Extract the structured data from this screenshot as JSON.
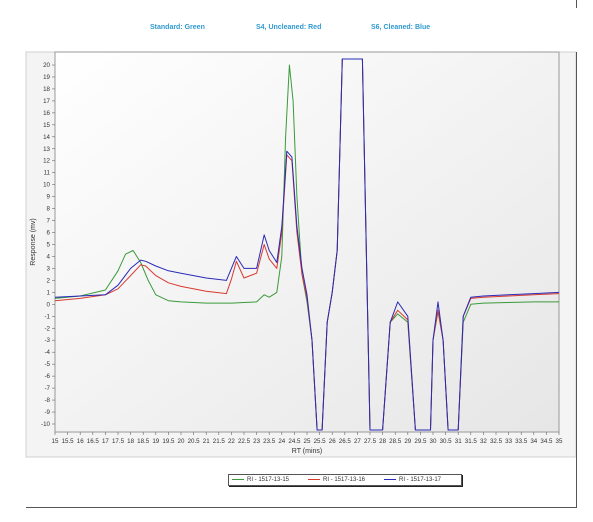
{
  "captions": {
    "standard": "Standard: Green",
    "s4": "S4, Uncleaned: Red",
    "s6": "S6, Cleaned: Blue"
  },
  "chart_data": {
    "type": "line",
    "xlabel": "RT (mins)",
    "ylabel": "Response (mv)",
    "xlim": [
      15,
      35
    ],
    "ylim": [
      -10.5,
      20.5
    ],
    "xticks": [
      15,
      15.5,
      16,
      16.5,
      17,
      17.5,
      18,
      18.5,
      19,
      19.5,
      20,
      20.5,
      21,
      21.5,
      22,
      22.5,
      23,
      23.5,
      24,
      24.5,
      25,
      25.5,
      26,
      26.5,
      27,
      27.5,
      28,
      28.5,
      29,
      29.5,
      30,
      30.5,
      31,
      31.5,
      32,
      32.5,
      33,
      33.5,
      34,
      34.5,
      35
    ],
    "yticks": [
      20,
      19,
      18,
      17,
      16,
      15,
      14,
      13,
      12,
      11,
      10,
      9,
      8,
      7,
      6,
      5,
      4,
      3,
      2,
      1,
      0,
      -1,
      -2,
      -3,
      -4,
      -5,
      -6,
      -7,
      -8,
      -9,
      -10
    ],
    "grid": false,
    "legend_position": "bottom",
    "series": [
      {
        "name": "RI - 1517-13-15",
        "color": "#3a9a3a",
        "x": [
          15,
          16,
          17,
          17.5,
          17.8,
          18.1,
          18.4,
          18.7,
          19,
          19.5,
          20,
          21,
          22,
          22.5,
          23,
          23.3,
          23.5,
          23.8,
          24,
          24.15,
          24.3,
          24.45,
          24.6,
          24.8,
          25,
          25.2,
          25.4,
          25.6,
          25.8,
          26,
          26.2,
          26.4,
          26.6,
          26.8,
          27,
          27.2,
          27.5,
          28,
          28.3,
          28.6,
          29,
          29.3,
          29.6,
          29.9,
          30,
          30.2,
          30.4,
          30.6,
          30.8,
          31,
          31.2,
          31.5,
          32,
          33,
          34,
          35
        ],
        "y": [
          0.5,
          0.7,
          1.2,
          2.8,
          4.2,
          4.5,
          3.5,
          2.0,
          0.8,
          0.3,
          0.2,
          0.1,
          0.1,
          0.15,
          0.2,
          0.8,
          0.6,
          1.0,
          4.0,
          14.0,
          20.0,
          17.0,
          9.0,
          2.5,
          0.2,
          -3.0,
          -10.5,
          -10.5,
          -1.5,
          1.0,
          4.5,
          20.5,
          20.5,
          20.5,
          20.5,
          20.5,
          -10.5,
          -10.5,
          -1.5,
          -0.8,
          -1.5,
          -10.5,
          -10.5,
          -10.5,
          -3.0,
          -0.6,
          -3.0,
          -10.5,
          -10.5,
          -10.5,
          -1.5,
          0.0,
          0.1,
          0.15,
          0.2,
          0.2
        ]
      },
      {
        "name": "RI - 1517-13-16",
        "color": "#d83a2e",
        "x": [
          15,
          16,
          17,
          17.5,
          18,
          18.4,
          18.6,
          19,
          19.5,
          20,
          21,
          21.8,
          22,
          22.2,
          22.5,
          23,
          23.3,
          23.5,
          23.8,
          24,
          24.2,
          24.4,
          24.6,
          24.8,
          25,
          25.2,
          25.4,
          25.6,
          25.8,
          26,
          26.2,
          26.4,
          26.6,
          26.8,
          27,
          27.2,
          27.5,
          28,
          28.3,
          28.6,
          29,
          29.3,
          29.6,
          29.9,
          30,
          30.2,
          30.4,
          30.6,
          30.8,
          31,
          31.2,
          31.5,
          32,
          33,
          34,
          35
        ],
        "y": [
          0.3,
          0.5,
          0.8,
          1.3,
          2.4,
          3.3,
          3.2,
          2.4,
          1.8,
          1.5,
          1.1,
          0.9,
          2.1,
          3.6,
          2.2,
          2.6,
          5.0,
          3.8,
          3.0,
          6.0,
          12.5,
          12.0,
          6.0,
          2.5,
          0.5,
          -3.0,
          -10.5,
          -10.5,
          -1.5,
          1.0,
          4.5,
          20.5,
          20.5,
          20.5,
          20.5,
          20.5,
          -10.5,
          -10.5,
          -1.5,
          -0.5,
          -1.3,
          -10.5,
          -10.5,
          -10.5,
          -3.0,
          -0.5,
          -3.0,
          -10.5,
          -10.5,
          -10.5,
          -1.0,
          0.5,
          0.6,
          0.7,
          0.8,
          0.9
        ]
      },
      {
        "name": "RI - 1517-13-17",
        "color": "#2a2ab8",
        "x": [
          15,
          16,
          17,
          17.5,
          18,
          18.4,
          18.6,
          19,
          19.5,
          20,
          21,
          21.8,
          22,
          22.2,
          22.5,
          23,
          23.3,
          23.5,
          23.8,
          24,
          24.2,
          24.4,
          24.6,
          24.8,
          25,
          25.2,
          25.4,
          25.6,
          25.8,
          26,
          26.2,
          26.4,
          26.6,
          26.8,
          27,
          27.2,
          27.5,
          28,
          28.3,
          28.6,
          29,
          29.3,
          29.6,
          29.9,
          30,
          30.2,
          30.4,
          30.6,
          30.8,
          31,
          31.2,
          31.5,
          32,
          33,
          34,
          35
        ],
        "y": [
          0.6,
          0.7,
          0.8,
          1.6,
          3.0,
          3.7,
          3.6,
          3.2,
          2.8,
          2.6,
          2.2,
          2.0,
          3.0,
          4.0,
          3.0,
          3.0,
          5.8,
          4.5,
          3.5,
          6.5,
          12.8,
          12.3,
          6.5,
          3.0,
          0.8,
          -3.0,
          -10.5,
          -10.5,
          -1.5,
          1.0,
          4.5,
          20.5,
          20.5,
          20.5,
          20.5,
          20.5,
          -10.5,
          -10.5,
          -1.5,
          0.2,
          -1.0,
          -10.5,
          -10.5,
          -10.5,
          -3.0,
          0.2,
          -3.0,
          -10.5,
          -10.5,
          -10.5,
          -1.0,
          0.6,
          0.7,
          0.8,
          0.9,
          1.0
        ]
      }
    ]
  }
}
